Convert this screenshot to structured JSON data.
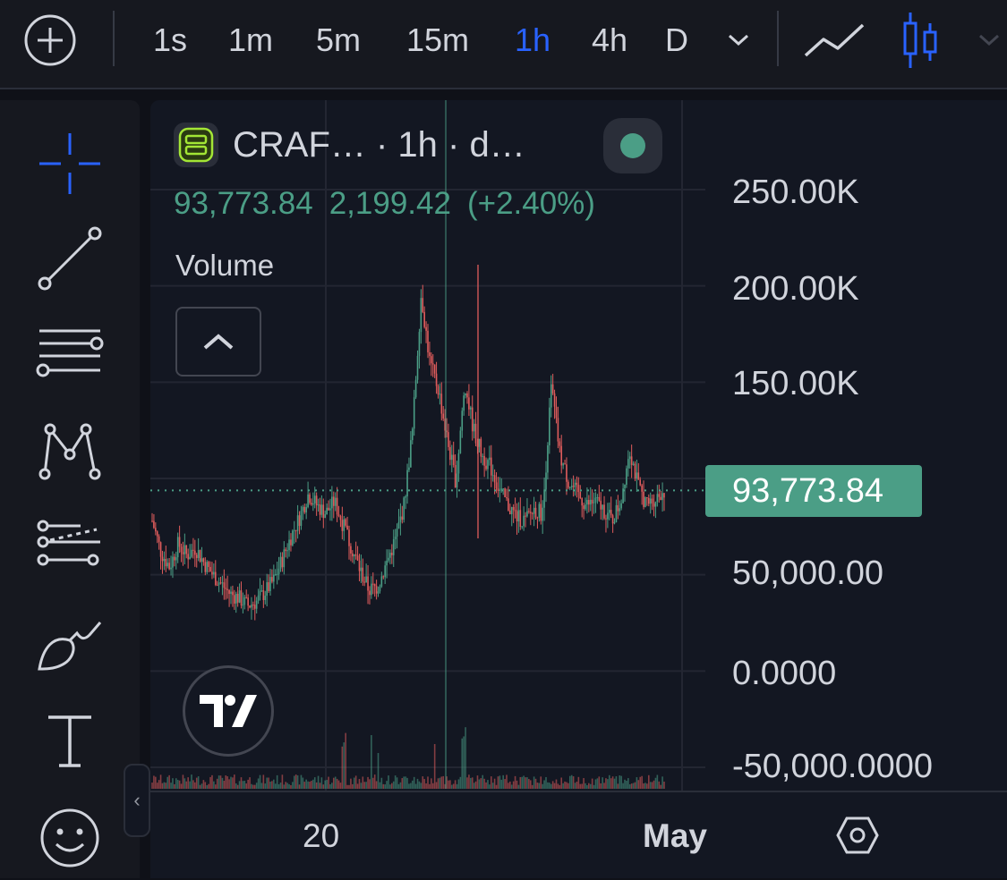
{
  "toolbar": {
    "add_icon": "plus-circle-icon",
    "timeframes": [
      {
        "label": "1s",
        "active": false
      },
      {
        "label": "1m",
        "active": false
      },
      {
        "label": "5m",
        "active": false
      },
      {
        "label": "15m",
        "active": false
      },
      {
        "label": "1h",
        "active": true
      },
      {
        "label": "4h",
        "active": false
      },
      {
        "label": "D",
        "active": false
      }
    ],
    "more_timeframes_icon": "chevron-down-icon",
    "line_chart_icon": "line-chart-icon",
    "candle_chart_icon": "candlestick-icon",
    "chart_type_dropdown_icon": "chevron-down-icon",
    "active_color": "#2962ff"
  },
  "drawing_tools": [
    {
      "name": "crosshair",
      "icon": "crosshair-icon",
      "active": true
    },
    {
      "name": "trend-line",
      "icon": "trend-line-icon"
    },
    {
      "name": "fib-retracement",
      "icon": "fib-lines-icon"
    },
    {
      "name": "pattern",
      "icon": "xabcd-pattern-icon"
    },
    {
      "name": "prediction",
      "icon": "forecast-icon"
    },
    {
      "name": "brush",
      "icon": "brush-icon"
    },
    {
      "name": "text",
      "icon": "text-icon"
    },
    {
      "name": "emoji",
      "icon": "smiley-icon"
    }
  ],
  "legend": {
    "symbol_icon": "server-icon",
    "title": "CRAF… · 1h · d…",
    "price": "93,773.84",
    "change": "2,199.42",
    "change_pct": "(+2.40%)",
    "volume_label": "Volume",
    "collapse_icon": "chevron-up-icon"
  },
  "price_axis": {
    "ticks": [
      "250.00K",
      "200.00K",
      "150.00K",
      "50,000.00",
      "0.0000",
      "-50,000.0000"
    ],
    "current_price_label": "93,773.84"
  },
  "time_axis": {
    "ticks": [
      {
        "label": "20",
        "bold": false
      },
      {
        "label": "May",
        "bold": true
      }
    ],
    "settings_icon": "settings-hexagon-icon"
  },
  "colors": {
    "up": "#4b9e86",
    "down": "#e05c5c",
    "background": "#131722",
    "grid": "#232632"
  },
  "chart_data": {
    "type": "candlestick",
    "xlabel": "",
    "ylabel": "",
    "current_price": 93773.84,
    "ylim": [
      -50000,
      255000
    ],
    "x_ticks": [
      "20",
      "May"
    ],
    "y_ticks": [
      "250.00K",
      "200.00K",
      "150.00K",
      "50,000.00",
      "0.0000",
      "-50,000.0000"
    ],
    "series": [
      {
        "type": "candlestick",
        "close_path": [
          78000,
          62000,
          54000,
          66000,
          60000,
          64000,
          56000,
          50000,
          45000,
          40000,
          38000,
          34000,
          36000,
          41000,
          47000,
          58000,
          70000,
          80000,
          92000,
          86000,
          82000,
          88000,
          76000,
          64000,
          52000,
          42000,
          44000,
          56000,
          68000,
          86000,
          125000,
          196000,
          160000,
          146000,
          120000,
          98000,
          150000,
          126000,
          112000,
          106000,
          94000,
          86000,
          80000,
          78000,
          84000,
          82000,
          148000,
          112000,
          98000,
          92000,
          86000,
          88000,
          84000,
          78000,
          88000,
          116000,
          96000,
          86000,
          90000,
          93773.84
        ]
      },
      {
        "type": "volume",
        "note": "volume histogram with spikes near the breakout"
      }
    ]
  }
}
